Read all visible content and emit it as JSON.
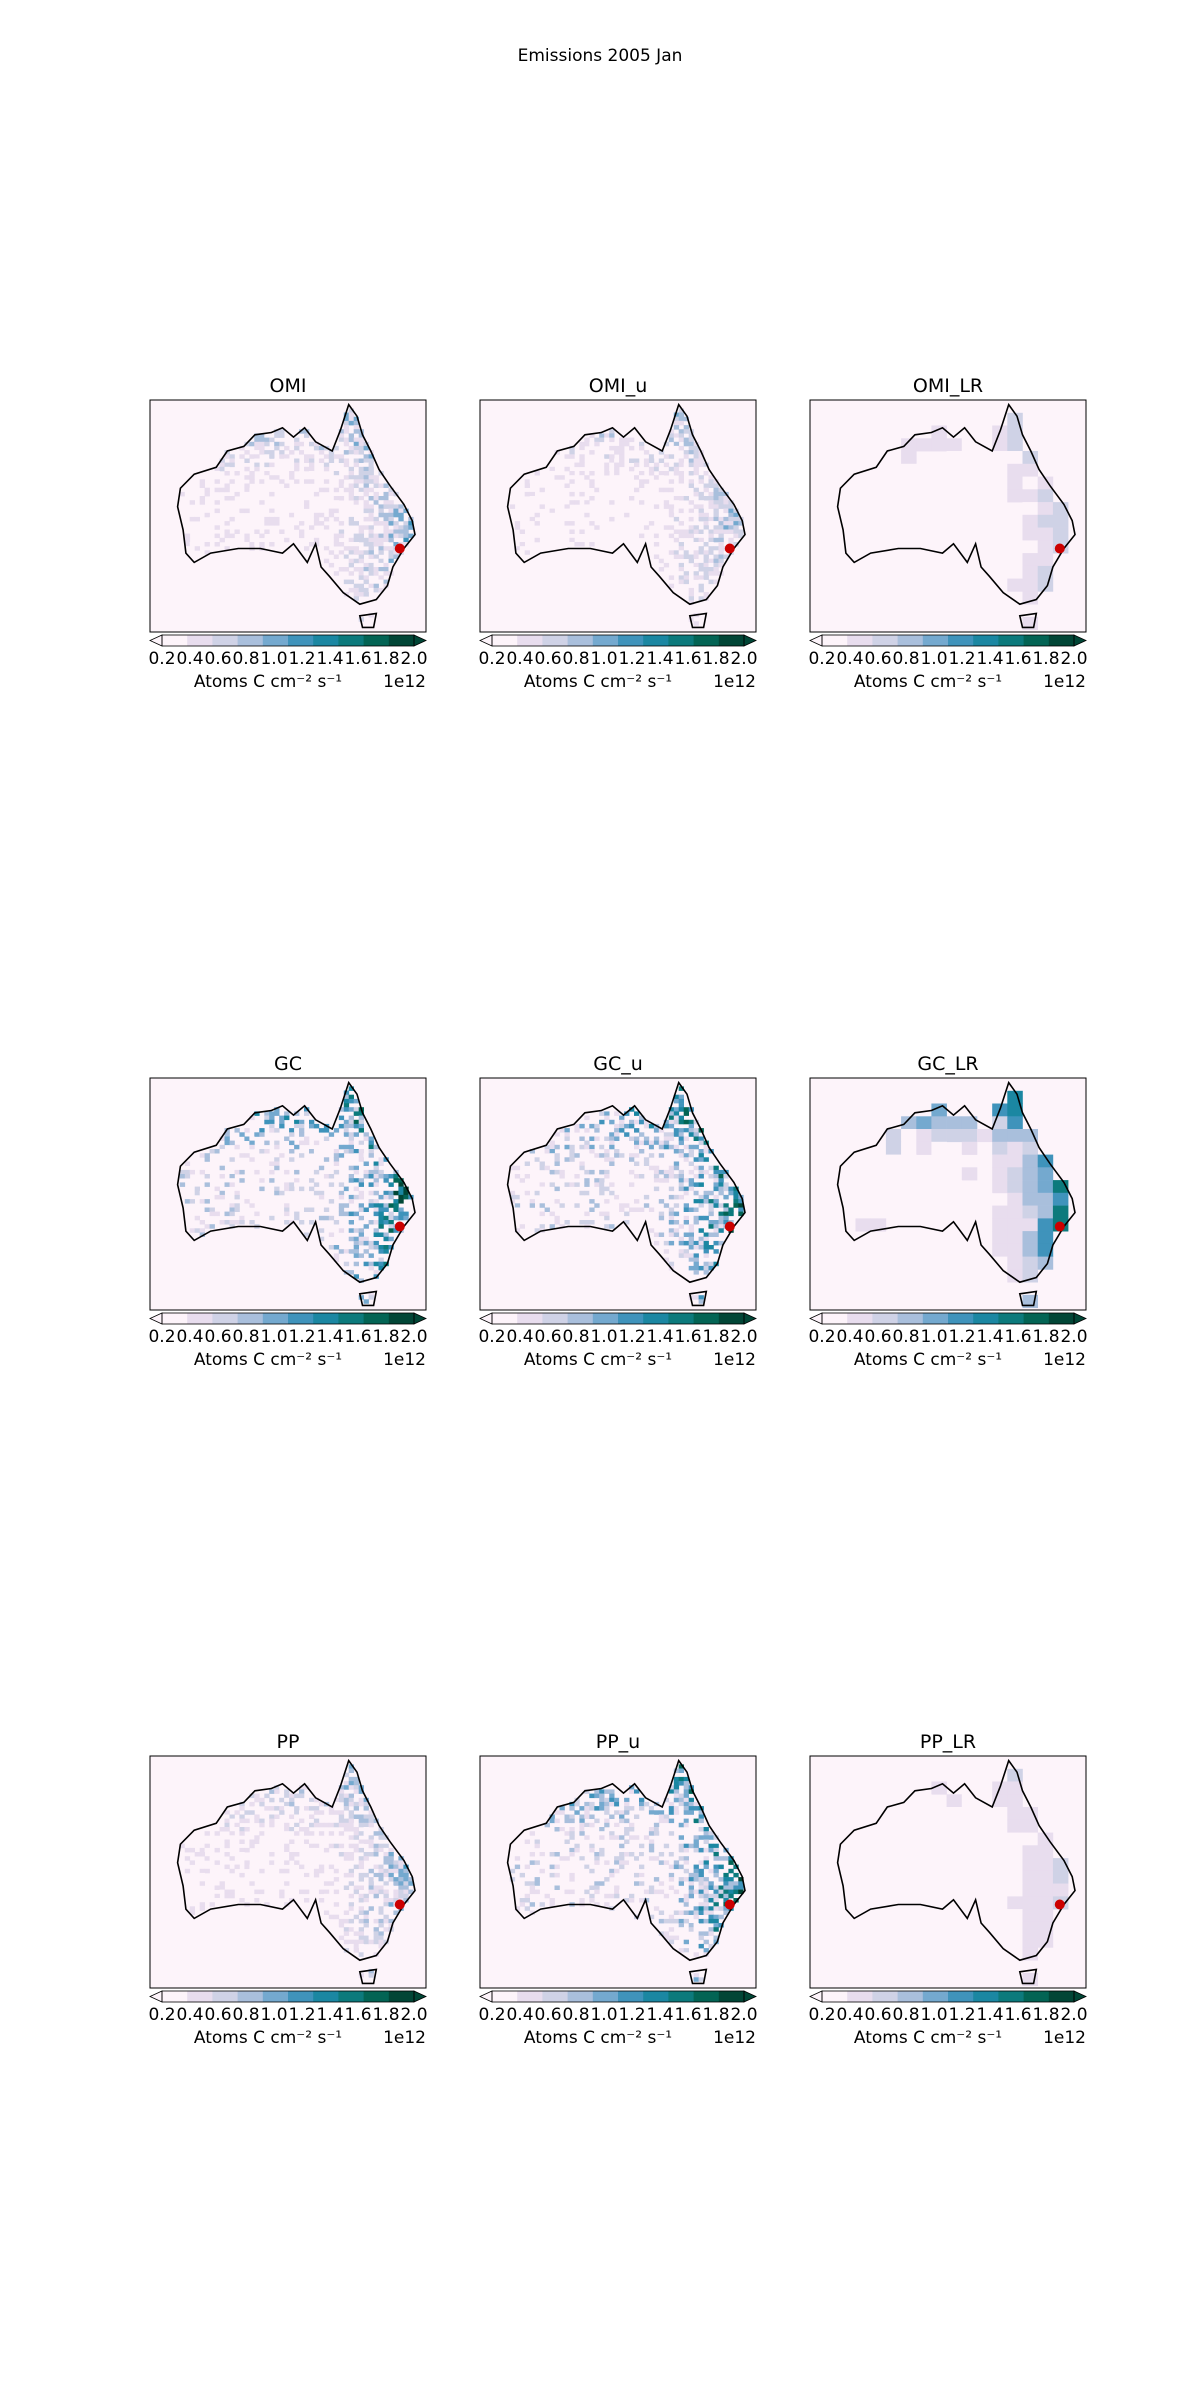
{
  "figure": {
    "title": "Emissions 2005 Jan"
  },
  "colorbar": {
    "ticks": [
      "0.2",
      "0.4",
      "0.6",
      "0.8",
      "1.0",
      "1.2",
      "1.4",
      "1.6",
      "1.8",
      "2.0"
    ],
    "label": "Atoms C cm⁻² s⁻¹",
    "offset": "1e12",
    "colors": [
      "#fdf4fa",
      "#e8ddee",
      "#cfd2e6",
      "#a9bfdc",
      "#74a9cf",
      "#3f93bb",
      "#1b87a2",
      "#0c7a7c",
      "#036454",
      "#014636"
    ],
    "range": [
      0.2,
      2.0
    ]
  },
  "marker": {
    "color": "#cc0000"
  },
  "panels": [
    {
      "title": "OMI",
      "resolution": "fine",
      "intensity": 0.45
    },
    {
      "title": "OMI_u",
      "resolution": "fine",
      "intensity": 0.4
    },
    {
      "title": "OMI_LR",
      "resolution": "coarse",
      "intensity": 0.35
    },
    {
      "title": "GC",
      "resolution": "fine",
      "intensity": 0.9
    },
    {
      "title": "GC_u",
      "resolution": "fine",
      "intensity": 0.9
    },
    {
      "title": "GC_LR",
      "resolution": "coarse",
      "intensity": 0.9
    },
    {
      "title": "PP",
      "resolution": "fine",
      "intensity": 0.45
    },
    {
      "title": "PP_u",
      "resolution": "fine",
      "intensity": 0.85
    },
    {
      "title": "PP_LR",
      "resolution": "coarse",
      "intensity": 0.3
    }
  ]
}
